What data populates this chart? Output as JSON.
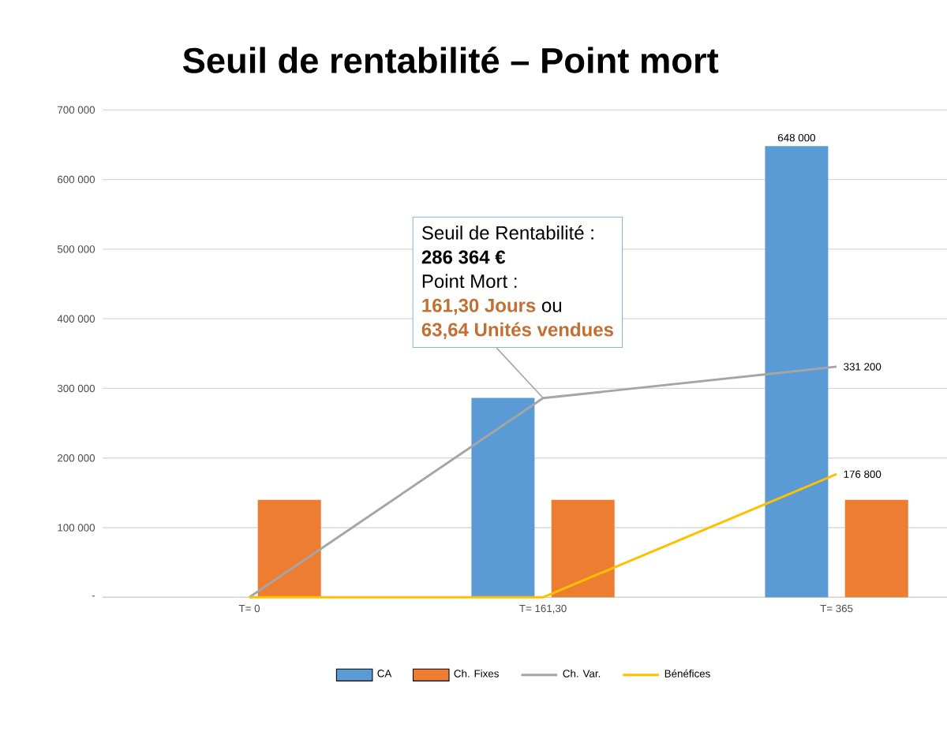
{
  "chart_data": {
    "type": "bar",
    "title": "Seuil de rentabilité – Point mort",
    "categories": [
      "T= 0",
      "T= 161,30",
      "T= 365"
    ],
    "series": [
      {
        "name": "CA",
        "color": "#5b9bd5",
        "values": [
          0,
          286364,
          648000
        ],
        "value_labels": [
          null,
          null,
          "648 000"
        ]
      },
      {
        "name": "Ch. Fixes",
        "color": "#ed7d31",
        "values": [
          140000,
          140000,
          140000
        ]
      },
      {
        "name": "Ch. Var.",
        "type": "line",
        "color": "#a5a5a5",
        "values": [
          0,
          286000,
          331200
        ],
        "value_labels": [
          null,
          null,
          "331 200"
        ]
      },
      {
        "name": "Bénéfices",
        "type": "line",
        "color": "#ffc000",
        "values": [
          0,
          0,
          176800
        ],
        "value_labels": [
          null,
          null,
          "176 800"
        ]
      }
    ],
    "ylim": [
      0,
      700000
    ],
    "yticks": [
      {
        "value": 0,
        "label": "-"
      },
      {
        "value": 100000,
        "label": "100 000"
      },
      {
        "value": 200000,
        "label": "200 000"
      },
      {
        "value": 300000,
        "label": "300 000"
      },
      {
        "value": 400000,
        "label": "400 000"
      },
      {
        "value": 500000,
        "label": "500 000"
      },
      {
        "value": 600000,
        "label": "600 000"
      },
      {
        "value": 700000,
        "label": "700 000"
      }
    ],
    "grid": "y",
    "legend": "bottom",
    "marker": "none",
    "line_style": "solid",
    "annotations": [
      "Seuil de Rentabilité :",
      "286 364 €",
      "Point Mort :",
      "161,30 Jours",
      "ou",
      {
        "text": "63,64 Unités vendues",
        "x": "T= 161,30",
        "y": 286364
      }
    ]
  }
}
